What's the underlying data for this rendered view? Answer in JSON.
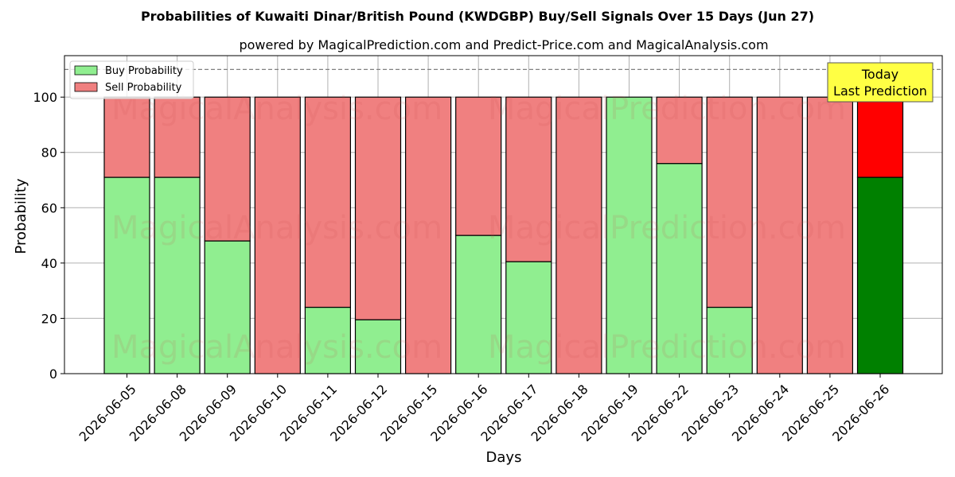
{
  "chart_data": {
    "type": "bar",
    "stacked": true,
    "title": "Probabilities of Kuwaiti Dinar/British Pound (KWDGBP) Buy/Sell Signals Over 15 Days (Jun 27)",
    "subtitle": "powered by MagicalPrediction.com and Predict-Price.com and MagicalAnalysis.com",
    "xlabel": "Days",
    "ylabel": "Probability",
    "ylim": [
      0,
      115
    ],
    "yticks": [
      0,
      20,
      40,
      60,
      80,
      100
    ],
    "grid": true,
    "reference_line": 110,
    "legend_position": "top-left",
    "categories": [
      "2026-06-05",
      "2026-06-08",
      "2026-06-09",
      "2026-06-10",
      "2026-06-11",
      "2026-06-12",
      "2026-06-15",
      "2026-06-16",
      "2026-06-17",
      "2026-06-18",
      "2026-06-19",
      "2026-06-22",
      "2026-06-23",
      "2026-06-24",
      "2026-06-25",
      "2026-06-26"
    ],
    "series": [
      {
        "name": "Buy Probability",
        "color": "#90ee90",
        "values": [
          71,
          71,
          48,
          0,
          24,
          19.5,
          0,
          50,
          40.5,
          0,
          100,
          76,
          24,
          0,
          0,
          71
        ]
      },
      {
        "name": "Sell Probability",
        "color": "#f08080",
        "values": [
          29,
          29,
          52,
          100,
          76,
          80.5,
          100,
          50,
          59.5,
          100,
          0,
          24,
          76,
          100,
          100,
          29
        ]
      }
    ],
    "highlight": {
      "index": 15,
      "buy_color": "#008000",
      "sell_color": "#ff0000"
    },
    "annotation": {
      "line1": "Today",
      "line2": "Last Prediction",
      "background": "#ffff44"
    },
    "watermarks": [
      "MagicalAnalysis.com",
      "MagicalPrediction.com"
    ]
  }
}
